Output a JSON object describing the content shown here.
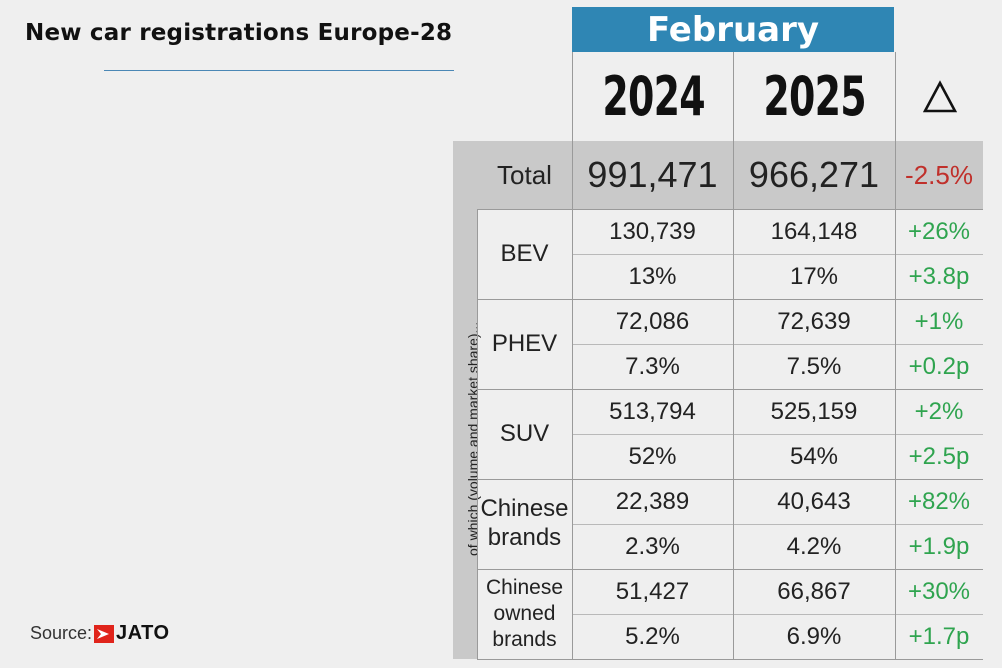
{
  "title": "New car registrations Europe-28",
  "source": {
    "label": "Source:",
    "brand": "JATO",
    "brand_color": "#e0241b"
  },
  "header": {
    "month": "February",
    "years": [
      "2024",
      "2025"
    ],
    "delta_symbol": "Δ",
    "month_color": "#2f86b4"
  },
  "side_label": "of which (volume and market share)...",
  "total": {
    "label": "Total",
    "v2024": "991,471",
    "v2025": "966,271",
    "delta": "-2.5%"
  },
  "rows": [
    {
      "label": "BEV",
      "volume": [
        "130,739",
        "164,148",
        "+26%"
      ],
      "share": [
        "13%",
        "17%",
        "+3.8p"
      ]
    },
    {
      "label": "PHEV",
      "volume": [
        "72,086",
        "72,639",
        "+1%"
      ],
      "share": [
        "7.3%",
        "7.5%",
        "+0.2p"
      ]
    },
    {
      "label": "SUV",
      "volume": [
        "513,794",
        "525,159",
        "+2%"
      ],
      "share": [
        "52%",
        "54%",
        "+2.5p"
      ]
    },
    {
      "label": "Chinese brands",
      "label_lines": [
        "Chinese",
        "brands"
      ],
      "volume": [
        "22,389",
        "40,643",
        "+82%"
      ],
      "share": [
        "2.3%",
        "4.2%",
        "+1.9p"
      ]
    },
    {
      "label": "Chinese owned brands",
      "label_lines": [
        "Chinese",
        "owned",
        "brands"
      ],
      "volume": [
        "51,427",
        "66,867",
        "+30%"
      ],
      "share": [
        "5.2%",
        "6.9%",
        "+1.7p"
      ]
    }
  ],
  "colors": {
    "negative": "#c0302b",
    "positive": "#2fa44f",
    "band": "#c9c9c9"
  }
}
